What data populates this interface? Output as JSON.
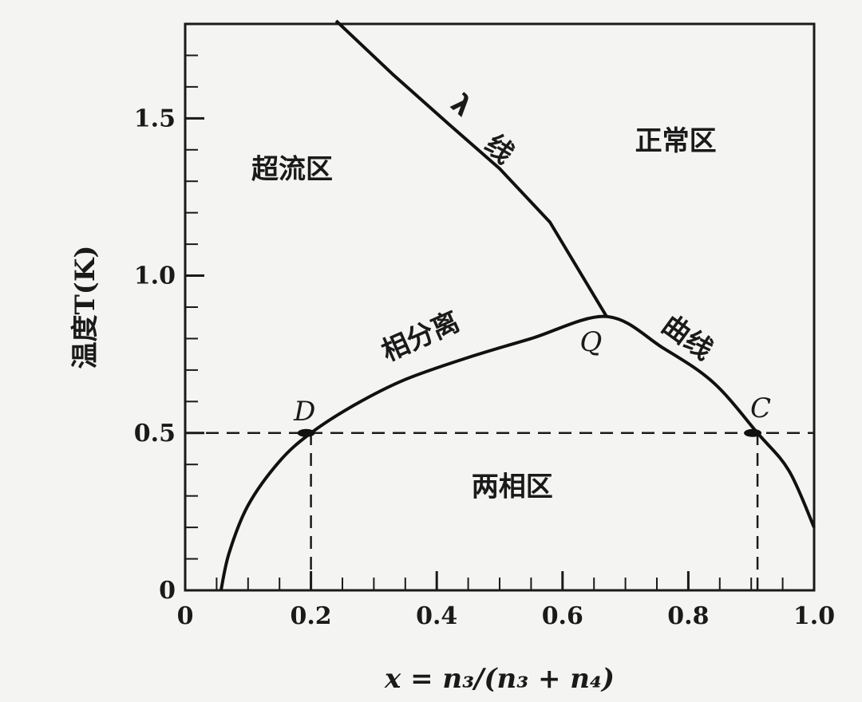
{
  "chart_data": {
    "type": "line",
    "xlabel": "x = n₃/(n₃ + n₄)",
    "ylabel": "温度T(K)",
    "xlim": [
      0,
      1.0
    ],
    "ylim": [
      0,
      1.8
    ],
    "x_ticks": [
      "0",
      "0.2",
      "0.4",
      "0.6",
      "0.8",
      "1.0"
    ],
    "x_tick_values": [
      0,
      0.2,
      0.4,
      0.6,
      0.8,
      1.0
    ],
    "y_ticks": [
      "0",
      "0.5",
      "1.0",
      "1.5"
    ],
    "y_tick_values": [
      0,
      0.5,
      1.0,
      1.5
    ],
    "series": [
      {
        "key": "lambda",
        "points": [
          [
            0.24,
            1.81
          ],
          [
            0.33,
            1.64
          ],
          [
            0.42,
            1.48
          ],
          [
            0.5,
            1.34
          ],
          [
            0.58,
            1.17
          ],
          [
            0.67,
            0.87
          ]
        ]
      },
      {
        "key": "phase_separation",
        "points": [
          [
            0.057,
            0
          ],
          [
            0.07,
            0.12
          ],
          [
            0.1,
            0.27
          ],
          [
            0.15,
            0.41
          ],
          [
            0.2,
            0.5
          ],
          [
            0.27,
            0.59
          ],
          [
            0.35,
            0.67
          ],
          [
            0.45,
            0.74
          ],
          [
            0.55,
            0.8
          ],
          [
            0.67,
            0.87
          ],
          [
            0.76,
            0.77
          ],
          [
            0.84,
            0.66
          ],
          [
            0.91,
            0.5
          ],
          [
            0.96,
            0.38
          ],
          [
            1.0,
            0.2
          ]
        ]
      }
    ],
    "reference_lines": [
      {
        "axis": "y",
        "value": 0.5,
        "from_x": 0,
        "to_x": 1.0
      },
      {
        "axis": "x",
        "value": 0.2,
        "from_y": 0,
        "to_y": 0.5
      },
      {
        "axis": "x",
        "value": 0.91,
        "from_y": 0,
        "to_y": 0.5
      }
    ],
    "region_labels": [
      {
        "text": "超流区",
        "x": 0.17,
        "y": 1.31
      },
      {
        "text": "正常区",
        "x": 0.78,
        "y": 1.4
      },
      {
        "text": "两相区",
        "x": 0.52,
        "y": 0.3
      }
    ],
    "curve_labels": [
      {
        "text": "λ",
        "x": 0.43,
        "y": 1.52,
        "angle": 41
      },
      {
        "text": "线",
        "x": 0.49,
        "y": 1.38,
        "angle": 41
      },
      {
        "text": "相分离",
        "x": 0.38,
        "y": 0.78,
        "angle": -24
      },
      {
        "text": "曲线",
        "x": 0.79,
        "y": 0.78,
        "angle": 36
      }
    ],
    "point_labels": [
      {
        "text": "Q",
        "x": 0.645,
        "y": 0.76
      },
      {
        "text": "D",
        "x": 0.19,
        "y": 0.54
      },
      {
        "text": "C",
        "x": 0.915,
        "y": 0.55
      }
    ]
  }
}
